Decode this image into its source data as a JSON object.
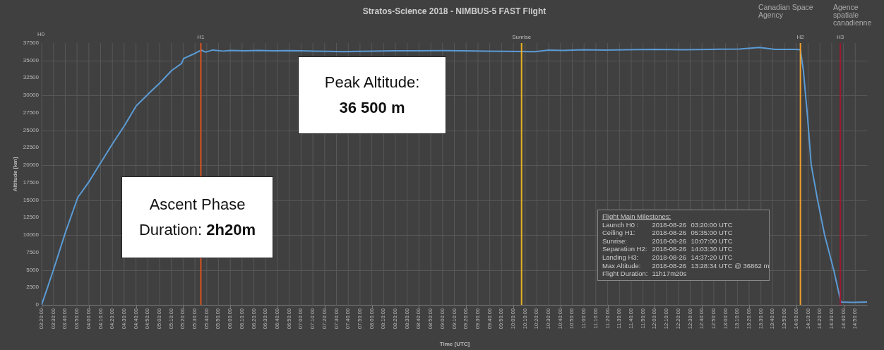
{
  "chart_data": {
    "type": "line",
    "title": "Stratos-Science 2018 - NIMBUS-5 FAST Flight",
    "xlabel": "Time [UTC]",
    "ylabel": "Altitude [km]",
    "x": [
      3.3333,
      3.5,
      3.667,
      3.843,
      4.0,
      4.17,
      4.34,
      4.51,
      4.67,
      4.87,
      5.01,
      5.17,
      5.31,
      5.34,
      5.47,
      5.59,
      5.65,
      5.75,
      5.9,
      6.0,
      6.2,
      6.4,
      6.6,
      6.8,
      7.0,
      7.2,
      7.4,
      7.6,
      7.8,
      8.0,
      8.3,
      8.6,
      9.0,
      9.3,
      9.6,
      9.9,
      10.1167,
      10.3,
      10.5,
      10.7,
      11.0,
      11.3,
      11.6,
      12.0,
      12.4,
      12.8,
      13.2,
      13.476,
      13.7,
      14.0,
      14.058,
      14.1,
      14.16,
      14.21,
      14.3,
      14.4,
      14.53,
      14.63,
      14.8,
      15.0
    ],
    "series": [
      {
        "color": "#5b9bd5",
        "values": [
          0,
          5000,
          10300,
          15360,
          17600,
          20400,
          23150,
          25780,
          28500,
          30500,
          31840,
          33560,
          34570,
          35280,
          35880,
          36490,
          36200,
          36500,
          36350,
          36450,
          36380,
          36450,
          36400,
          36420,
          36380,
          36350,
          36300,
          36250,
          36300,
          36330,
          36380,
          36400,
          36420,
          36400,
          36350,
          36300,
          36280,
          36250,
          36500,
          36450,
          36550,
          36500,
          36550,
          36600,
          36550,
          36600,
          36650,
          36862,
          36600,
          36600,
          36550,
          33560,
          26790,
          20100,
          15060,
          10000,
          4950,
          400,
          350,
          400
        ]
      }
    ],
    "xlim": [
      3.3333,
      15.0
    ],
    "ylim": [
      0,
      37500
    ],
    "yticks": [
      0,
      2500,
      5000,
      7500,
      10000,
      12500,
      15000,
      17500,
      20000,
      22500,
      25000,
      27500,
      30000,
      32500,
      35000,
      37500
    ],
    "xticks": [
      {
        "value": 3.3333,
        "label": "03:20:00"
      },
      {
        "value": 3.5,
        "label": "03:30:00"
      },
      {
        "value": 3.6667,
        "label": "03:40:00"
      },
      {
        "value": 3.8333,
        "label": "03:50:00"
      },
      {
        "value": 4,
        "label": "04:00:00"
      },
      {
        "value": 4.1667,
        "label": "04:10:00"
      },
      {
        "value": 4.3333,
        "label": "04:20:00"
      },
      {
        "value": 4.5,
        "label": "04:30:00"
      },
      {
        "value": 4.6667,
        "label": "04:40:00"
      },
      {
        "value": 4.8333,
        "label": "04:50:00"
      },
      {
        "value": 5,
        "label": "05:00:00"
      },
      {
        "value": 5.1667,
        "label": "05:10:00"
      },
      {
        "value": 5.3333,
        "label": "05:20:00"
      },
      {
        "value": 5.5,
        "label": "05:30:00"
      },
      {
        "value": 5.6667,
        "label": "05:40:00"
      },
      {
        "value": 5.8333,
        "label": "05:50:00"
      },
      {
        "value": 6,
        "label": "06:00:00"
      },
      {
        "value": 6.1667,
        "label": "06:10:00"
      },
      {
        "value": 6.3333,
        "label": "06:20:00"
      },
      {
        "value": 6.5,
        "label": "06:30:00"
      },
      {
        "value": 6.6667,
        "label": "06:40:00"
      },
      {
        "value": 6.8333,
        "label": "06:50:00"
      },
      {
        "value": 7,
        "label": "07:00:00"
      },
      {
        "value": 7.1667,
        "label": "07:10:00"
      },
      {
        "value": 7.3333,
        "label": "07:20:00"
      },
      {
        "value": 7.5,
        "label": "07:30:00"
      },
      {
        "value": 7.6667,
        "label": "07:40:00"
      },
      {
        "value": 7.8333,
        "label": "07:50:00"
      },
      {
        "value": 8,
        "label": "08:00:00"
      },
      {
        "value": 8.1667,
        "label": "08:10:00"
      },
      {
        "value": 8.3333,
        "label": "08:20:00"
      },
      {
        "value": 8.5,
        "label": "08:30:00"
      },
      {
        "value": 8.6667,
        "label": "08:40:00"
      },
      {
        "value": 8.8333,
        "label": "08:50:00"
      },
      {
        "value": 9,
        "label": "09:00:00"
      },
      {
        "value": 9.1667,
        "label": "09:10:00"
      },
      {
        "value": 9.3333,
        "label": "09:20:00"
      },
      {
        "value": 9.5,
        "label": "09:30:00"
      },
      {
        "value": 9.6667,
        "label": "09:40:00"
      },
      {
        "value": 9.8333,
        "label": "09:50:00"
      },
      {
        "value": 10,
        "label": "10:00:00"
      },
      {
        "value": 10.1667,
        "label": "10:10:00"
      },
      {
        "value": 10.3333,
        "label": "10:20:00"
      },
      {
        "value": 10.5,
        "label": "10:30:00"
      },
      {
        "value": 10.6667,
        "label": "10:40:00"
      },
      {
        "value": 10.8333,
        "label": "10:50:00"
      },
      {
        "value": 11,
        "label": "11:00:00"
      },
      {
        "value": 11.1667,
        "label": "11:10:00"
      },
      {
        "value": 11.3333,
        "label": "11:20:00"
      },
      {
        "value": 11.5,
        "label": "11:30:00"
      },
      {
        "value": 11.6667,
        "label": "11:40:00"
      },
      {
        "value": 11.8333,
        "label": "11:50:00"
      },
      {
        "value": 12,
        "label": "12:00:00"
      },
      {
        "value": 12.1667,
        "label": "12:10:00"
      },
      {
        "value": 12.3333,
        "label": "12:20:00"
      },
      {
        "value": 12.5,
        "label": "12:30:00"
      },
      {
        "value": 12.6667,
        "label": "12:40:00"
      },
      {
        "value": 12.8333,
        "label": "12:50:00"
      },
      {
        "value": 13,
        "label": "13:00:00"
      },
      {
        "value": 13.1667,
        "label": "13:10:00"
      },
      {
        "value": 13.3333,
        "label": "13:20:00"
      },
      {
        "value": 13.5,
        "label": "13:30:00"
      },
      {
        "value": 13.6667,
        "label": "13:40:00"
      },
      {
        "value": 13.8333,
        "label": "13:50:00"
      },
      {
        "value": 14,
        "label": "14:00:00"
      },
      {
        "value": 14.1667,
        "label": "14:10:00"
      },
      {
        "value": 14.3333,
        "label": "14:20:00"
      },
      {
        "value": 14.5,
        "label": "14:30:00"
      },
      {
        "value": 14.6667,
        "label": "14:40:00"
      },
      {
        "value": 14.8333,
        "label": "14:50:00"
      }
    ],
    "ref_lines": [
      {
        "axis": "x",
        "value": 5.5833,
        "label": "H1",
        "color": "#d9541e"
      },
      {
        "axis": "x",
        "value": 10.1167,
        "label": "Sunrise",
        "color": "#e8b020"
      },
      {
        "axis": "x",
        "value": 14.0583,
        "label": "H2",
        "color": "#f0a030"
      },
      {
        "axis": "x",
        "value": 14.6222,
        "label": "H3",
        "color": "#a01830"
      }
    ],
    "grid": true,
    "marker": "none",
    "line_style": "solid",
    "annotations": [
      "H0",
      "Peak Altitude:\n36 500 m",
      "Ascent Phase\nDuration: 2h20m",
      "Flight Main Milestones:\nLaunch H0 :\t2018-08-26\t03:20:00 UTC\nCeiling H1:\t2018-08-26\t05:35:00 UTC\nSunrise:\t2018-08-26\t10:07:00 UTC\nSeparation H2:\t2018-08-26\t14:03:30 UTC\nLanding H3:\t2018-08-26\t14:37:20 UTC\nMax Altitude:\t2018-08-26\t13:28:34 UTC @ 36862 m\nFlight Duration:\t11h17m20s",
      "Canadian Space\nAgency",
      "Agence spatiale\ncanadienne"
    ]
  }
}
